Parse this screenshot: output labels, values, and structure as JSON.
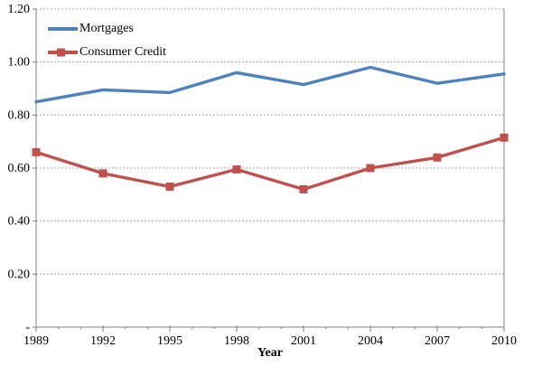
{
  "chart_data": {
    "type": "line",
    "title": "",
    "xlabel": "Year",
    "ylabel": "",
    "x": [
      1989,
      1992,
      1995,
      1998,
      2001,
      2004,
      2007,
      2010
    ],
    "series": [
      {
        "name": "Mortgages",
        "color": "#4F81BD",
        "marker": "none",
        "values": [
          0.85,
          0.895,
          0.885,
          0.96,
          0.915,
          0.98,
          0.92,
          0.955
        ]
      },
      {
        "name": "Consumer Credit",
        "color": "#C0504D",
        "marker": "square",
        "values": [
          0.66,
          0.58,
          0.53,
          0.595,
          0.52,
          0.6,
          0.64,
          0.715
        ]
      }
    ],
    "ylim": [
      0,
      1.2
    ],
    "ytick_step": 0.2,
    "ytick_labels": [
      "-",
      "0.20",
      "0.40",
      "0.60",
      "0.80",
      "1.00",
      "1.20"
    ],
    "grid": "horizontal dotted gridlines at each 0.20",
    "legend_position": "inside top-left"
  },
  "colors": {
    "axis": "#808080",
    "gridline": "#A6A6A6",
    "text": "#000000",
    "background": "#FFFFFF"
  }
}
